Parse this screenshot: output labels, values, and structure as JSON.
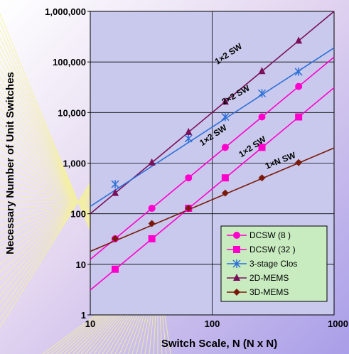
{
  "chart_data": {
    "type": "line",
    "xscale": "log",
    "yscale": "log",
    "xlim": [
      10,
      1000
    ],
    "ylim": [
      1,
      1000000
    ],
    "xticks": [
      "10",
      "100",
      "1000"
    ],
    "yticks": [
      "1",
      "10",
      "100",
      "1,000",
      "10,000",
      "100,000",
      "1,000,000"
    ],
    "xlabel": "Switch Scale, N  (N x N)",
    "ylabel": "Necessary Number of Unit Switches",
    "grid": true,
    "legend_position": "bottom-right",
    "series": [
      {
        "name": "DCSW (8    )",
        "color": "#ff00cc",
        "marker": "circle",
        "x": [
          16,
          32,
          64,
          128,
          256,
          512
        ],
        "y": [
          32,
          128,
          512,
          2048,
          8192,
          32768
        ]
      },
      {
        "name": "DCSW (32    )",
        "color": "#ff00cc",
        "marker": "square",
        "x": [
          16,
          32,
          64,
          128,
          256,
          512
        ],
        "y": [
          8,
          32,
          128,
          512,
          2048,
          8192
        ]
      },
      {
        "name": "3-stage Clos",
        "color": "#2d6fd6",
        "marker": "star",
        "x": [
          16,
          64,
          128,
          256,
          512
        ],
        "y": [
          384,
          3072,
          8200,
          24000,
          64000
        ]
      },
      {
        "name": "2D-MEMS",
        "color": "#7a0f5a",
        "marker": "triangle",
        "x": [
          16,
          32,
          64,
          128,
          256,
          512
        ],
        "y": [
          256,
          1024,
          4096,
          16384,
          65536,
          262144
        ]
      },
      {
        "name": "3D-MEMS",
        "color": "#7a1a0a",
        "marker": "diamond",
        "x": [
          16,
          32,
          64,
          128,
          256,
          512
        ],
        "y": [
          32,
          64,
          128,
          256,
          512,
          1024
        ]
      }
    ],
    "trend_lines": [
      {
        "color": "#7a0f5a",
        "x": [
          10,
          1000
        ],
        "y": [
          100,
          1000000
        ]
      },
      {
        "color": "#2d6fd6",
        "x": [
          10,
          1000
        ],
        "y": [
          140,
          190000
        ]
      },
      {
        "color": "#ff00cc",
        "x": [
          10,
          1000
        ],
        "y": [
          12.5,
          125000
        ]
      },
      {
        "color": "#ff00cc",
        "x": [
          10,
          1000
        ],
        "y": [
          3.1,
          31000
        ]
      },
      {
        "color": "#7a1a0a",
        "x": [
          10,
          1000
        ],
        "y": [
          18,
          2000
        ]
      }
    ],
    "annotations": [
      {
        "text": "1×2 SW",
        "x": 140,
        "y": 130000,
        "angle": -34
      },
      {
        "text": "2×2 SW",
        "x": 160,
        "y": 20000,
        "angle": -30
      },
      {
        "text": "1×2 SW",
        "x": 105,
        "y": 3200,
        "angle": -34
      },
      {
        "text": "1×2 SW",
        "x": 220,
        "y": 1900,
        "angle": -34
      },
      {
        "text": "1×N SW",
        "x": 370,
        "y": 1000,
        "angle": -22
      }
    ]
  }
}
